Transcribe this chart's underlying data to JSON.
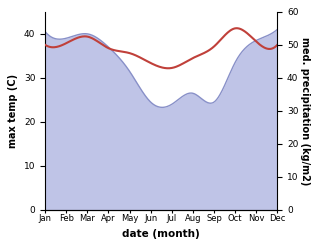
{
  "months": [
    "Jan",
    "Feb",
    "Mar",
    "Apr",
    "May",
    "Jun",
    "Jul",
    "Aug",
    "Sep",
    "Oct",
    "Nov",
    "Dec"
  ],
  "max_temp": [
    40.5,
    39.0,
    40.0,
    37.0,
    31.5,
    24.5,
    24.0,
    26.5,
    24.5,
    33.5,
    38.5,
    41.0
  ],
  "med_precip": [
    50.0,
    50.5,
    52.5,
    49.0,
    47.5,
    44.5,
    43.0,
    46.0,
    49.5,
    55.0,
    51.0,
    50.0
  ],
  "temp_fill_color": "#aab0e0",
  "temp_line_color": "#8890c8",
  "precip_color": "#c0403a",
  "left_ylabel": "max temp (C)",
  "right_ylabel": "med. precipitation (kg/m2)",
  "xlabel": "date (month)",
  "ylim_left": [
    0,
    45
  ],
  "ylim_right": [
    0,
    60
  ],
  "yticks_left": [
    0,
    10,
    20,
    30,
    40
  ],
  "yticks_right": [
    0,
    10,
    20,
    30,
    40,
    50,
    60
  ],
  "background_color": "#ffffff"
}
